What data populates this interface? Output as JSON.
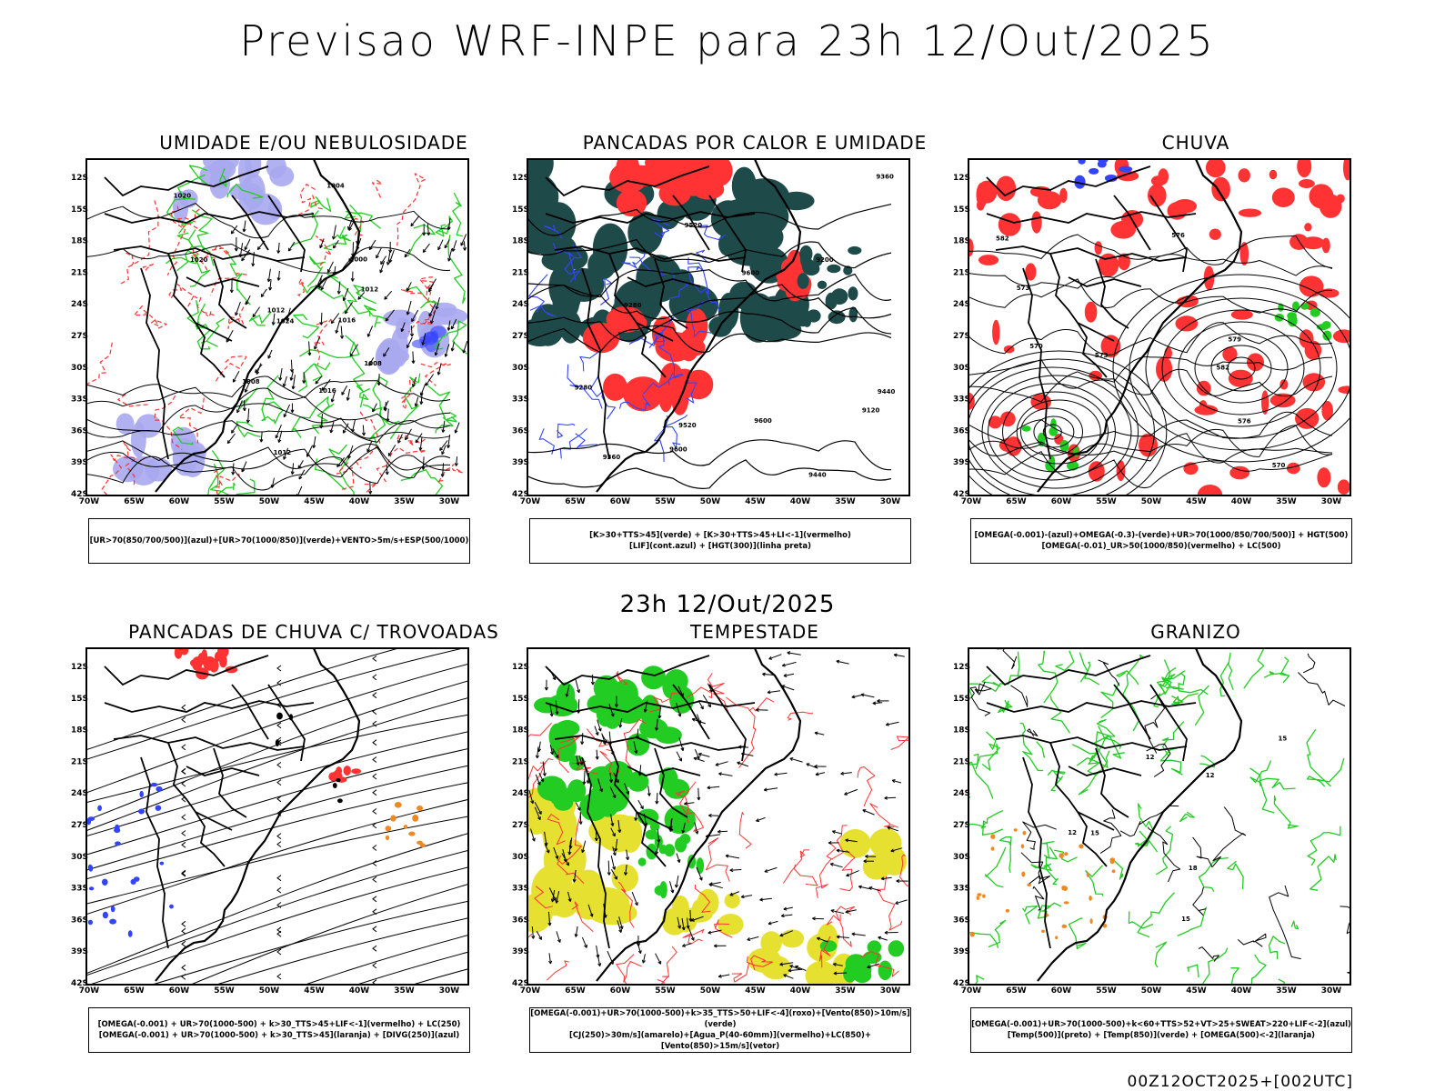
{
  "header": {
    "title": "Previsao WRF-INPE  para 23h 12/Out/2025"
  },
  "subheader": {
    "title": "23h 12/Out/2025"
  },
  "footer": {
    "run": "00Z12OCT2025+[002UTC]"
  },
  "axes": {
    "lat_ticks": [
      "12S",
      "15S",
      "18S",
      "21S",
      "24S",
      "27S",
      "30S",
      "33S",
      "36S",
      "39S",
      "42S"
    ],
    "lon_ticks": [
      "70W",
      "65W",
      "60W",
      "55W",
      "50W",
      "45W",
      "40W",
      "35W",
      "30W"
    ]
  },
  "colors": {
    "green": "#22cc22",
    "red": "#ff3333",
    "blue": "#3344ff",
    "lavender": "#a8a8f0",
    "darkteal": "#1f4a4a",
    "yellow": "#e6e030",
    "orange": "#ee8822"
  },
  "panels": [
    {
      "title": "UMIDADE E/OU NEBULOSIDADE",
      "kind": "umidade",
      "legend": [
        "[UR>70(850/700/500)](azul)+[UR>70(1000/850)](verde)+VENTO>5m/s+ESP(500/1000)"
      ],
      "contours": [
        "1012",
        "1008",
        "1004",
        "1000",
        "1012",
        "1016",
        "1020",
        "1024",
        "1012",
        "1016",
        "1020",
        "1008"
      ]
    },
    {
      "title": "PANCADAS POR CALOR E UMIDADE",
      "kind": "pancadas",
      "legend": [
        "[K>30+TTS>45](verde) + [K>30+TTS>45+LI<-1](vermelho)",
        "[LIF](cont.azul) + [HGT(300)](linha preta)"
      ],
      "contours": [
        "9600",
        "9600",
        "9520",
        "9440",
        "9360",
        "9280",
        "9200",
        "9120",
        "9600",
        "9520",
        "9440",
        "9360",
        "9280"
      ]
    },
    {
      "title": "CHUVA",
      "kind": "chuva",
      "legend": [
        "[OMEGA(-0.001)-(azul)+OMEGA(-0.3)-(verde)+UR>70(1000/850/700/500)] + HGT(500)",
        "[OMEGA(-0.01)_UR>50(1000/850)(vermelho) + LC(500)"
      ],
      "contours": [
        "582",
        "579",
        "576",
        "573",
        "570",
        "576",
        "582",
        "573",
        "570"
      ]
    },
    {
      "title": "PANCADAS DE CHUVA C/ TROVOADAS",
      "kind": "trovoadas",
      "legend": [
        "[OMEGA(-0.001) + UR>70(1000-500) + k>30_TTS>45+LIF<-1](vermelho) + LC(250)",
        "[OMEGA(-0.001) + UR>70(1000-500) + k>30_TTS>45](laranja) + [DIVG(250)](azul)"
      ],
      "contours": []
    },
    {
      "title": "TEMPESTADE",
      "kind": "tempestade",
      "legend": [
        "[OMEGA(-0.001)+UR>70(1000-500)+k>35_TTS>50+LIF<-4](roxo)+[Vento(850)>10m/s](verde)",
        "[CJ(250)>30m/s](amarelo)+[Agua_P(40-60mm)](vermelho)+LC(850)+[Vento(850)>15m/s](vetor)"
      ],
      "contours": []
    },
    {
      "title": "GRANIZO",
      "kind": "granizo",
      "legend": [
        "[OMEGA(-0.001)+UR>70(1000-500)+k<60+TTS>52+VT>25+SWEAT>220+LIF<-2](azul)",
        "[Temp(500)](preto) + [Temp(850)](verde) + [OMEGA(500)<-2](laranja)"
      ],
      "contours": [
        "12",
        "15",
        "18",
        "12",
        "15",
        "12",
        "15"
      ]
    }
  ]
}
